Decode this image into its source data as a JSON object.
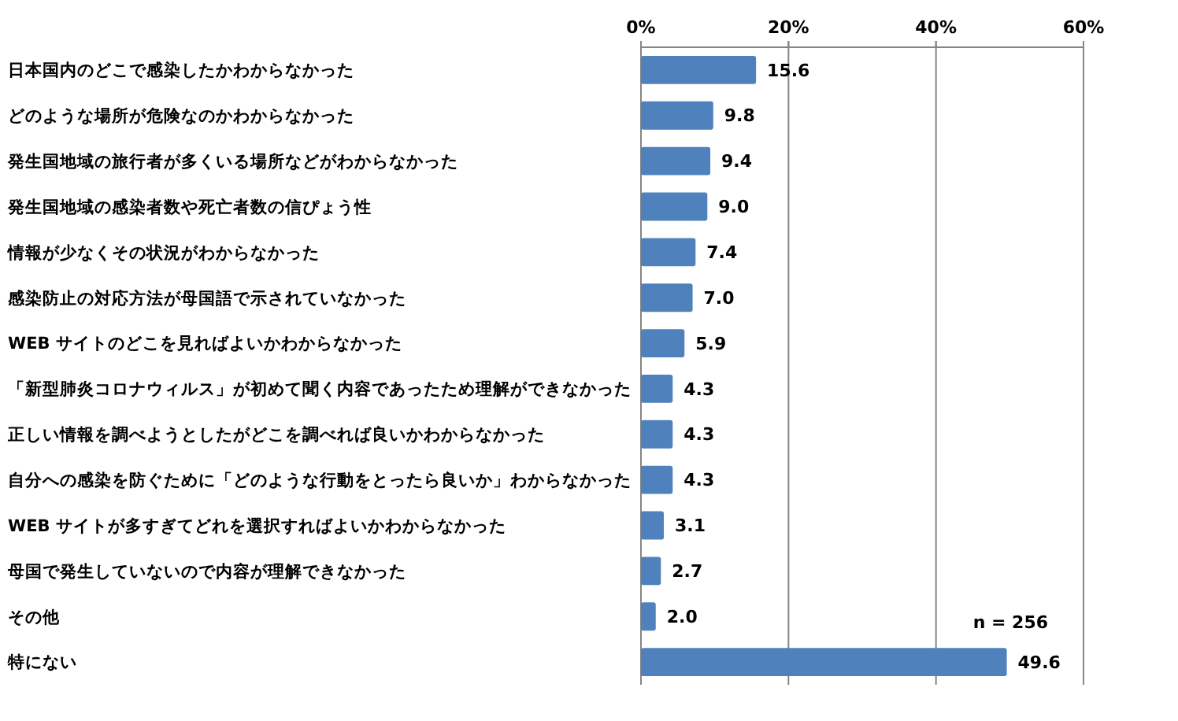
{
  "chart_data": {
    "type": "bar",
    "orientation": "horizontal",
    "categories": [
      "日本国内のどこで感染したかわからなかった",
      "どのような場所が危険なのかわからなかった",
      "発生国地域の旅行者が多くいる場所などがわからなかった",
      "発生国地域の感染者数や死亡者数の信ぴょう性",
      "情報が少なくその状況がわからなかった",
      "感染防止の対応方法が母国語で示されていなかった",
      "WEB サイトのどこを見ればよいかわからなかった",
      "「新型肺炎コロナウィルス」が初めて聞く内容であったため理解ができなかった",
      "正しい情報を調べようとしたがどこを調べれば良いかわからなかった",
      "自分への感染を防ぐために「どのような行動をとったら良いか」わからなかった",
      "WEB サイトが多すぎてどれを選択すればよいかわからなかった",
      "母国で発生していないので内容が理解できなかった",
      "その他",
      "特にない"
    ],
    "values": [
      15.6,
      9.8,
      9.4,
      9.0,
      7.4,
      7.0,
      5.9,
      4.3,
      4.3,
      4.3,
      3.1,
      2.7,
      2.0,
      49.6
    ],
    "value_labels": [
      "15.6",
      "9.8",
      "9.4",
      "9.0",
      "7.4",
      "7.0",
      "5.9",
      "4.3",
      "4.3",
      "4.3",
      "3.1",
      "2.7",
      "2.0",
      "49.6"
    ],
    "color": "#4f81bd",
    "xlim": [
      0,
      60
    ],
    "xticks": [
      {
        "value": 0,
        "label": "0%"
      },
      {
        "value": 20,
        "label": "20%"
      },
      {
        "value": 40,
        "label": "40%"
      },
      {
        "value": 60,
        "label": "60%"
      }
    ],
    "grid": "x",
    "annotations": [
      "n = 256"
    ]
  }
}
